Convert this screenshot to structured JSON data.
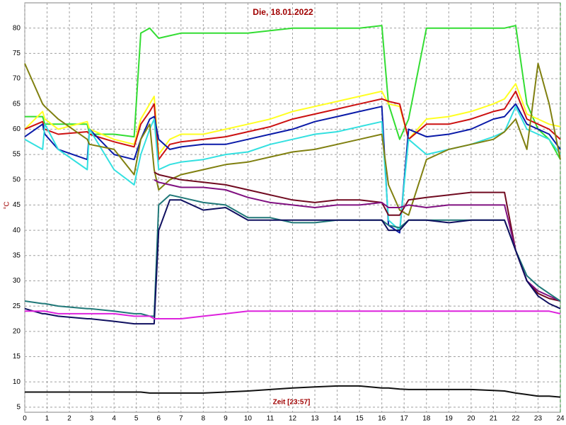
{
  "chart_data": {
    "type": "line",
    "title": "Die, 18.01.2022",
    "x_label": "Zeit [23:57]",
    "y_label": "°C",
    "xlim": [
      0,
      24
    ],
    "ylim": [
      4,
      85
    ],
    "xticks": [
      0,
      1,
      2,
      3,
      4,
      5,
      6,
      7,
      8,
      9,
      10,
      11,
      12,
      13,
      14,
      15,
      16,
      17,
      18,
      19,
      20,
      21,
      22,
      23,
      24
    ],
    "yticks": [
      5,
      10,
      15,
      20,
      25,
      30,
      35,
      40,
      45,
      50,
      55,
      60,
      65,
      70,
      75,
      80
    ],
    "grid": true,
    "x": [
      0,
      0.8,
      0.9,
      1.5,
      2.8,
      2.9,
      4,
      4.9,
      5.2,
      5.6,
      5.8,
      6,
      6.5,
      7,
      8,
      9,
      10,
      11,
      12,
      13,
      14,
      15,
      16,
      16.3,
      16.8,
      17.2,
      18,
      19,
      20,
      21,
      21.5,
      22,
      22.5,
      23,
      23.5,
      24
    ],
    "series": [
      {
        "color": "#33dd33",
        "values": [
          62.5,
          62.5,
          61,
          61,
          61,
          59,
          59,
          58.5,
          79,
          80,
          79,
          78,
          78.5,
          79,
          79,
          79,
          79,
          79.5,
          80,
          80,
          80,
          80,
          80.5,
          65,
          58,
          62,
          80,
          80,
          80,
          80,
          80,
          80.5,
          65,
          60,
          58,
          54
        ]
      },
      {
        "color": "#ffff22",
        "values": [
          60,
          63.5,
          62,
          60,
          61.5,
          60,
          58,
          57,
          62,
          65,
          66.5,
          55,
          58,
          59,
          59,
          60,
          61,
          62,
          63.5,
          64.5,
          65.5,
          66.5,
          67.5,
          65,
          64.5,
          58,
          62,
          62.5,
          63.5,
          65,
          66,
          69,
          63,
          62,
          61,
          60.5
        ]
      },
      {
        "color": "#cc1111",
        "values": [
          60,
          61.5,
          60,
          59,
          59.5,
          59,
          57.5,
          56.5,
          61,
          63.5,
          65,
          54,
          57,
          57.5,
          58,
          58.5,
          59.5,
          60.5,
          62,
          63,
          64,
          65,
          66,
          65.5,
          65,
          58,
          61,
          61,
          62,
          63.5,
          64,
          67.5,
          62,
          61,
          60,
          58
        ]
      },
      {
        "color": "#0a1aa8",
        "values": [
          58.5,
          61,
          59,
          56,
          54,
          60,
          55,
          54,
          58,
          62,
          62.5,
          58,
          56,
          56.5,
          57,
          57,
          58,
          59,
          60,
          61.5,
          62.5,
          63.5,
          64.5,
          41,
          39.5,
          60,
          58.5,
          59,
          60,
          62,
          62.5,
          65,
          61,
          60,
          59,
          56
        ]
      },
      {
        "color": "#33e0e0",
        "values": [
          58,
          56,
          61,
          56,
          52,
          60,
          52,
          49,
          55,
          60,
          62,
          52,
          53,
          53.5,
          54,
          55,
          55.5,
          57,
          58,
          59,
          59.5,
          60.5,
          61.5,
          42,
          40,
          58,
          55,
          56,
          57,
          58.5,
          59.5,
          64.5,
          60,
          59,
          58,
          55
        ]
      },
      {
        "color": "#808010",
        "values": [
          73,
          65,
          64.5,
          62,
          58,
          57,
          56,
          51,
          58,
          61,
          52,
          48,
          50,
          51,
          52,
          53,
          53.5,
          54.5,
          55.5,
          56,
          57,
          58,
          59,
          49,
          44,
          43,
          54,
          56,
          57,
          58,
          59.5,
          62,
          56,
          73,
          65,
          54
        ]
      },
      {
        "color": "#700a20",
        "values": [
          null,
          null,
          null,
          null,
          null,
          null,
          null,
          null,
          null,
          null,
          51.5,
          51,
          50.5,
          50,
          49.5,
          49,
          48,
          47,
          46,
          45.5,
          46,
          46,
          45.5,
          43,
          43,
          46,
          46.5,
          47,
          47.5,
          47.5,
          47.5,
          36,
          30,
          27.5,
          26.5,
          26
        ]
      },
      {
        "color": "#801080",
        "values": [
          null,
          null,
          null,
          null,
          null,
          null,
          null,
          null,
          null,
          null,
          50,
          49.5,
          49,
          48.5,
          48.5,
          48,
          46.5,
          45.5,
          45,
          44.5,
          45,
          45,
          45.5,
          44.5,
          44.5,
          45,
          44.5,
          45,
          45,
          45,
          45,
          36,
          30,
          28,
          27,
          26
        ]
      },
      {
        "color": "#207878",
        "values": [
          26,
          25.5,
          25.5,
          25,
          24.5,
          24.5,
          24,
          23.5,
          23.5,
          23,
          23,
          45,
          47,
          46.5,
          45.5,
          45,
          42.5,
          42.5,
          41.5,
          41.5,
          42,
          42,
          42,
          41,
          40.5,
          42,
          42,
          42,
          42,
          42,
          42,
          36,
          31,
          29,
          27.5,
          26
        ]
      },
      {
        "color": "#101060",
        "values": [
          24.5,
          23.5,
          23.5,
          23,
          22.5,
          22.5,
          22,
          21.5,
          21.5,
          21.5,
          21.5,
          40,
          46,
          46,
          44,
          44.5,
          42,
          42,
          42,
          42,
          42,
          42,
          42,
          40,
          40,
          42,
          42,
          41.5,
          42,
          42,
          42,
          36,
          30,
          27,
          25.5,
          24.5
        ]
      },
      {
        "color": "#dd22dd",
        "values": [
          24,
          24,
          24,
          23.5,
          23.5,
          23.5,
          23.5,
          23,
          23,
          23,
          22.5,
          22.5,
          22.5,
          22.5,
          23,
          23.5,
          24,
          24,
          24,
          24,
          24,
          24,
          24,
          24,
          24,
          24,
          24,
          24,
          24,
          24,
          24,
          24,
          24,
          24,
          24,
          23.5
        ]
      },
      {
        "color": "#111111",
        "values": [
          8,
          8,
          8,
          8,
          8,
          8,
          8,
          8,
          8,
          7.8,
          7.8,
          7.8,
          7.8,
          7.8,
          7.8,
          8,
          8.2,
          8.5,
          8.8,
          9,
          9.2,
          9.2,
          8.8,
          8.8,
          8.6,
          8.5,
          8.5,
          8.5,
          8.5,
          8.3,
          8.2,
          7.8,
          7.5,
          7.2,
          7.2,
          7
        ]
      }
    ]
  }
}
